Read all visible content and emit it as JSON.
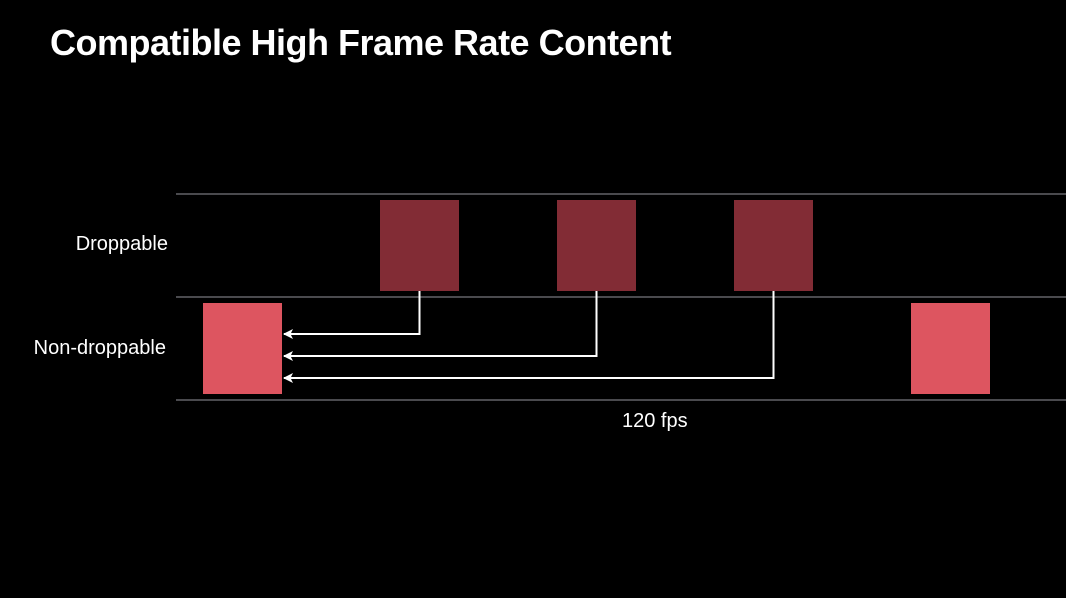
{
  "slide": {
    "title": "Compatible High Frame Rate Content"
  },
  "rows": {
    "droppable_label": "Droppable",
    "non_droppable_label": "Non-droppable"
  },
  "frame_rate_label": "120 fps",
  "frames": {
    "droppable": [
      1,
      2,
      3
    ],
    "non_droppable": [
      0,
      4
    ],
    "references": [
      {
        "from": 1,
        "to": 0
      },
      {
        "from": 2,
        "to": 0
      },
      {
        "from": 3,
        "to": 0
      }
    ]
  },
  "colors": {
    "background": "#000000",
    "droppable_frame": "#822c35",
    "non_droppable_frame": "#dd5560",
    "divider": "#4a4a4e",
    "arrow": "#ffffff"
  }
}
